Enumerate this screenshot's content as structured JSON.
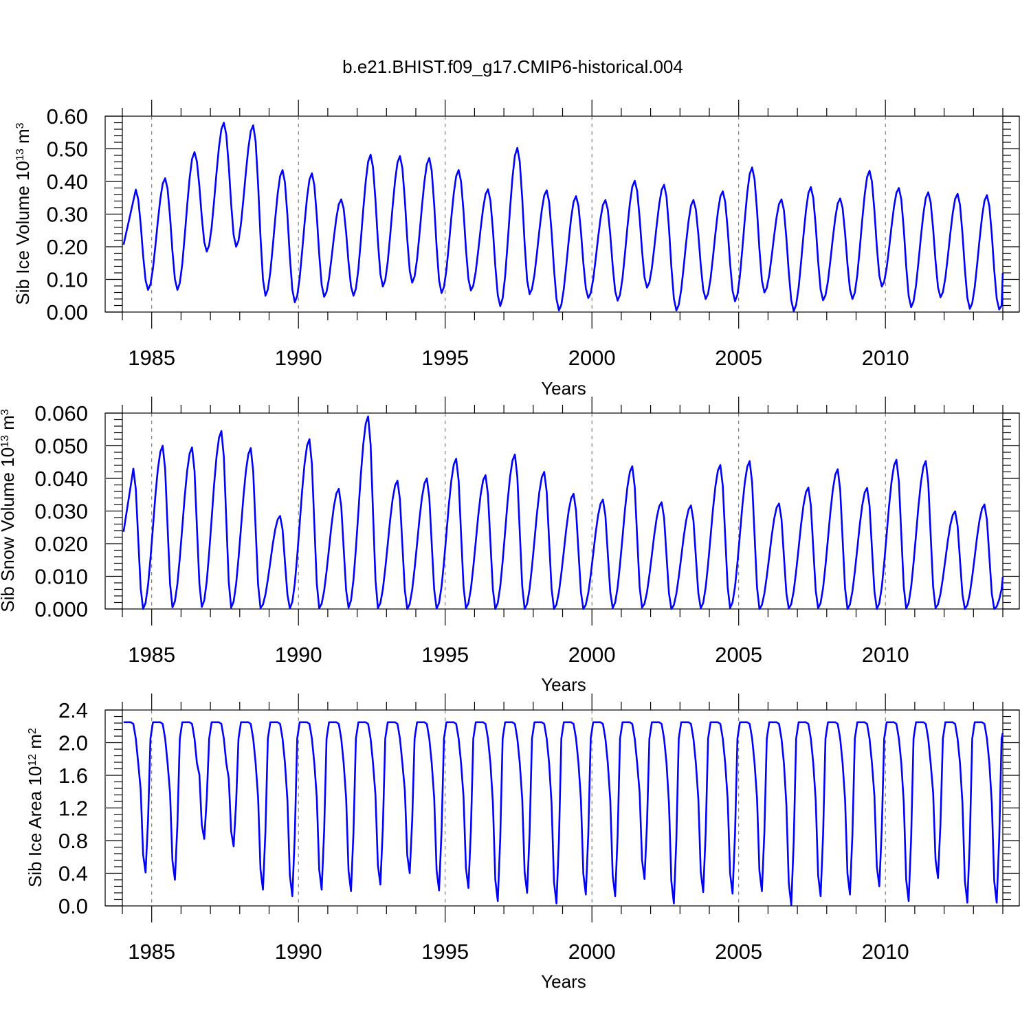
{
  "figure": {
    "title": "b.e21.BHIST.f09_g17.CMIP6-historical.004"
  },
  "chart_data": [
    {
      "type": "line",
      "id": "ice-volume",
      "ylabel": "Sib Ice Volume",
      "ylabel_unit_base": "10",
      "ylabel_unit_exp": "13",
      "ylabel_unit_symbol": "m",
      "ylabel_unit_symbol_exp": "3",
      "xlabel": "Years",
      "xlim": [
        1984.0,
        2014.0
      ],
      "ylim": [
        0.0,
        0.6
      ],
      "yticks": [
        "0.00",
        "0.10",
        "0.20",
        "0.30",
        "0.40",
        "0.50",
        "0.60"
      ],
      "yticks_values": [
        0,
        0.1,
        0.2,
        0.3,
        0.4,
        0.5,
        0.6
      ],
      "yminor": 0.02,
      "xticks": [
        "1985",
        "1990",
        "1995",
        "2000",
        "2005",
        "2010"
      ],
      "xticks_values": [
        1985,
        1990,
        1995,
        2000,
        2005,
        2010
      ],
      "grid": "dashed vertical at major x ticks",
      "line_color": "#0000ff",
      "seasonal": {
        "max_month": 5,
        "min_month": 10,
        "yearly_max": [
          0.375,
          0.41,
          0.49,
          0.58,
          0.572,
          0.435,
          0.425,
          0.345,
          0.482,
          0.478,
          0.472,
          0.435,
          0.376,
          0.503,
          0.373,
          0.355,
          0.343,
          0.402,
          0.39,
          0.343,
          0.37,
          0.443,
          0.345,
          0.383,
          0.348,
          0.433,
          0.38,
          0.367,
          0.362,
          0.358
        ],
        "yearly_min": [
          0.068,
          0.068,
          0.185,
          0.2,
          0.05,
          0.03,
          0.047,
          0.05,
          0.078,
          0.09,
          0.058,
          0.066,
          0.018,
          0.055,
          0.005,
          0.043,
          0.035,
          0.075,
          0.005,
          0.04,
          0.033,
          0.06,
          0.003,
          0.036,
          0.04,
          0.078,
          0.015,
          0.045,
          0.01,
          0.008
        ],
        "end_value": 0.12
      }
    },
    {
      "type": "line",
      "id": "snow-volume",
      "ylabel": "Sib Snow Volume",
      "ylabel_unit_base": "10",
      "ylabel_unit_exp": "13",
      "ylabel_unit_symbol": "m",
      "ylabel_unit_symbol_exp": "3",
      "xlabel": "Years",
      "xlim": [
        1984.0,
        2014.0
      ],
      "ylim": [
        0.0,
        0.06
      ],
      "yticks": [
        "0.000",
        "0.010",
        "0.020",
        "0.030",
        "0.040",
        "0.050",
        "0.060"
      ],
      "yticks_values": [
        0,
        0.01,
        0.02,
        0.03,
        0.04,
        0.05,
        0.06
      ],
      "yminor": 0.002,
      "xticks": [
        "1985",
        "1990",
        "1995",
        "2000",
        "2005",
        "2010"
      ],
      "xticks_values": [
        1985,
        1990,
        1995,
        2000,
        2005,
        2010
      ],
      "grid": "dashed vertical at major x ticks",
      "line_color": "#0000ff",
      "seasonal": {
        "max_month": 4,
        "min_month": 8,
        "yearly_max": [
          0.043,
          0.05,
          0.0495,
          0.0545,
          0.0493,
          0.0285,
          0.052,
          0.0368,
          0.059,
          0.0393,
          0.04,
          0.046,
          0.041,
          0.0473,
          0.042,
          0.0353,
          0.0335,
          0.0437,
          0.0327,
          0.0317,
          0.0441,
          0.0453,
          0.0323,
          0.0372,
          0.0428,
          0.0371,
          0.0457,
          0.0453,
          0.0299,
          0.032
        ],
        "yearly_min": [
          0.0,
          0.0005,
          0.0006,
          0.0004,
          0.0003,
          0.0002,
          0.0002,
          0.0004,
          0.0003,
          0.0,
          0.0001,
          0.0002,
          0.0,
          0.0,
          0.0,
          0.0,
          0.0003,
          0.0004,
          0.0,
          0.0002,
          0.0003,
          0.0,
          0.0001,
          0.0002,
          0.0,
          0.0,
          0.0001,
          0.0003,
          0.0,
          0.0
        ],
        "end_value": 0.0098
      }
    },
    {
      "type": "line",
      "id": "ice-area",
      "ylabel": "Sib Ice Area",
      "ylabel_unit_base": "10",
      "ylabel_unit_exp": "12",
      "ylabel_unit_symbol": "m",
      "ylabel_unit_symbol_exp": "2",
      "xlabel": "Years",
      "xlim": [
        1984.0,
        2014.0
      ],
      "ylim": [
        0.0,
        2.4
      ],
      "yticks": [
        "0.0",
        "0.4",
        "0.8",
        "1.2",
        "1.6",
        "2.0",
        "2.4"
      ],
      "yticks_values": [
        0,
        0.4,
        0.8,
        1.2,
        1.6,
        2.0,
        2.4
      ],
      "yminor": 0.08,
      "xticks": [
        "1985",
        "1990",
        "1995",
        "2000",
        "2005",
        "2010"
      ],
      "xticks_values": [
        1985,
        1990,
        1995,
        2000,
        2005,
        2010
      ],
      "grid": "dashed vertical at major x ticks",
      "line_color": "#0000ff",
      "seasonal": {
        "plateau": 2.25,
        "min_month": 9,
        "yearly_min": [
          0.41,
          0.32,
          0.82,
          0.73,
          0.2,
          0.12,
          0.2,
          0.18,
          0.26,
          0.4,
          0.19,
          0.22,
          0.06,
          0.16,
          0.03,
          0.14,
          0.12,
          0.33,
          0.03,
          0.17,
          0.15,
          0.18,
          0.01,
          0.12,
          0.14,
          0.24,
          0.06,
          0.34,
          0.04,
          0.04
        ],
        "end_value": 2.12
      }
    }
  ]
}
